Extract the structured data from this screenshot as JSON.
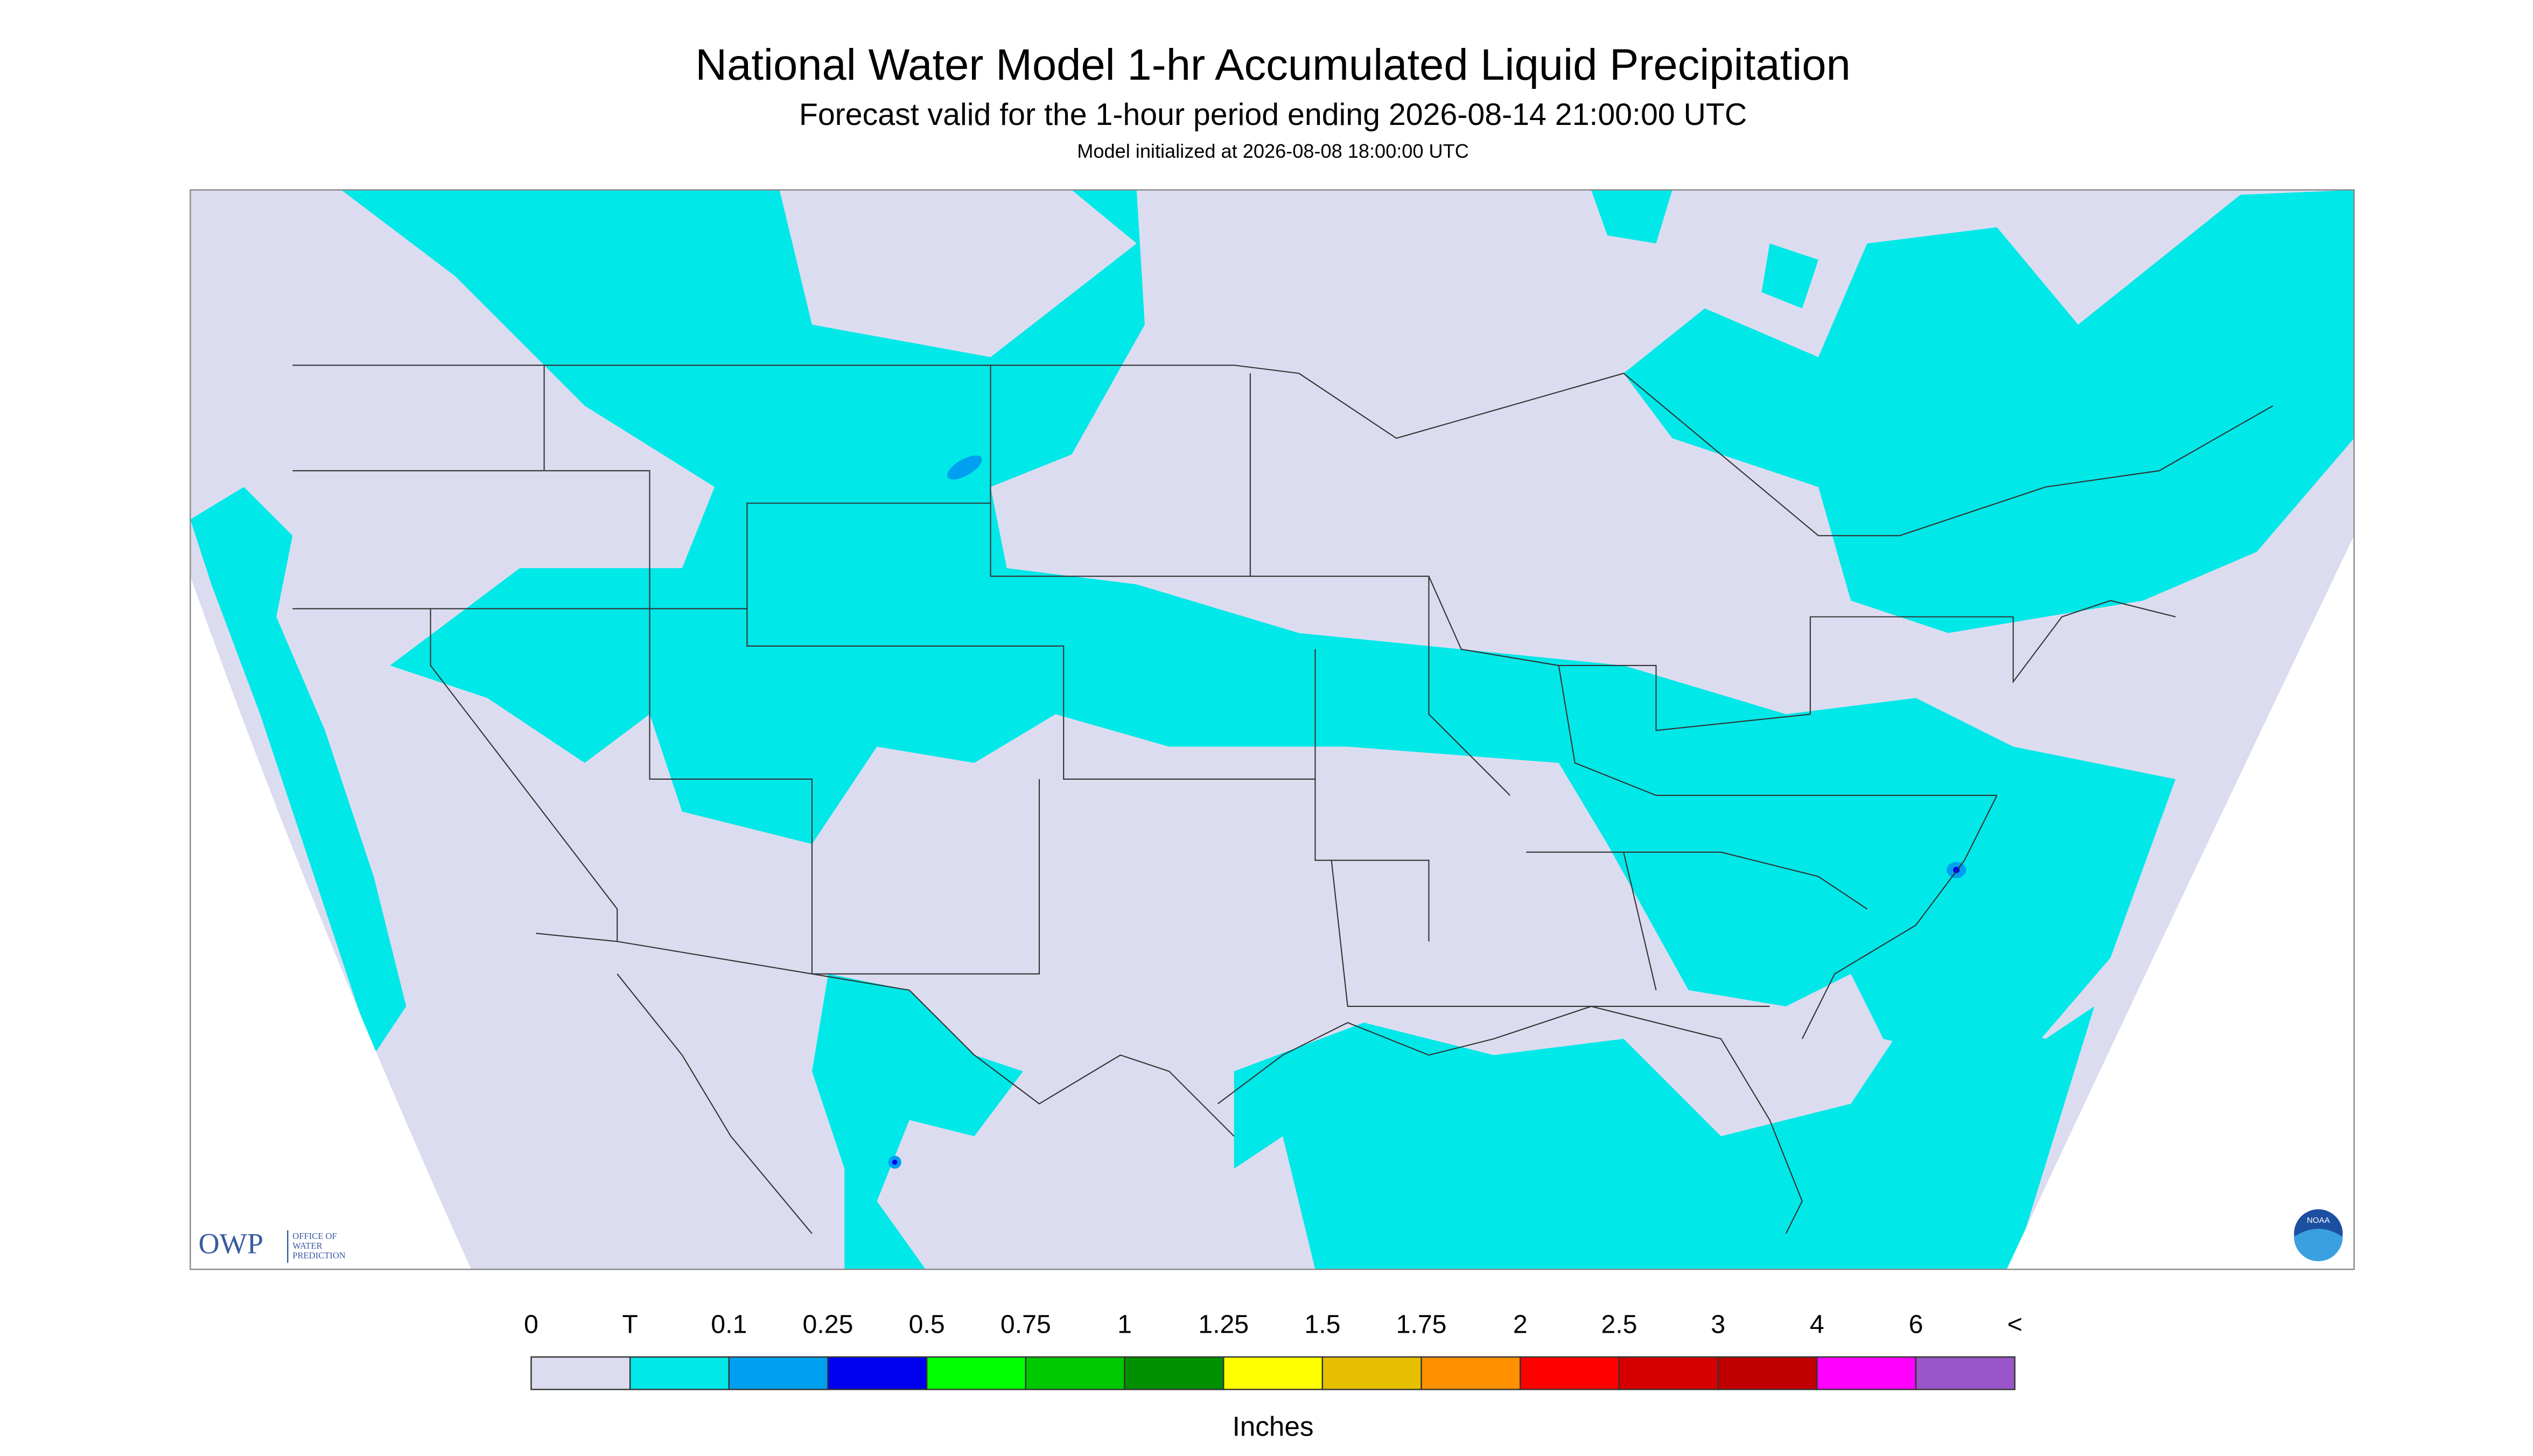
{
  "header": {
    "title": "National Water Model 1-hr Accumulated Liquid Precipitation",
    "subtitle": "Forecast valid for the 1-hour period ending 2026-08-14 21:00:00 UTC",
    "init": "Model initialized at 2026-08-08 18:00:00 UTC"
  },
  "logos": {
    "owp": "OWP",
    "owp_lines": [
      "OFFICE OF",
      "WATER",
      "PREDICTION"
    ],
    "noaa": "NOAA"
  },
  "legend": {
    "labels": [
      "0",
      "T",
      "0.1",
      "0.25",
      "0.5",
      "0.75",
      "1",
      "1.25",
      "1.5",
      "1.75",
      "2",
      "2.5",
      "3",
      "4",
      "6",
      "<"
    ],
    "colors": [
      "#dcdcf0",
      "#00e8e8",
      "#00a0f0",
      "#0000f0",
      "#00ff00",
      "#00c800",
      "#009000",
      "#ffff00",
      "#e6c000",
      "#ff9000",
      "#ff0000",
      "#d60000",
      "#c00000",
      "#ff00ff",
      "#9955c9"
    ],
    "units": "Inches"
  }
}
